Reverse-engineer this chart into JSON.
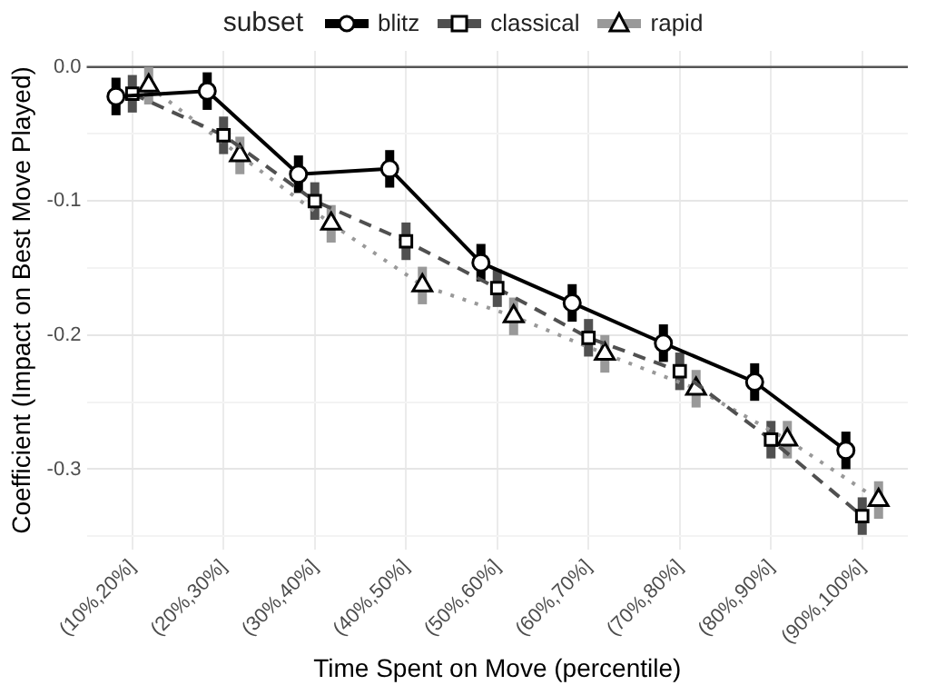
{
  "chart_data": {
    "type": "line",
    "xlabel": "Time Spent on Move (percentile)",
    "ylabel": "Coefficient (Impact on Best Move Played)",
    "legend_title": "subset",
    "legend": "top",
    "categories": [
      "(10%,20%]",
      "(20%,30%]",
      "(30%,40%]",
      "(40%,50%]",
      "(50%,60%]",
      "(60%,70%]",
      "(70%,80%]",
      "(80%,90%]",
      "(90%,100%]"
    ],
    "series": [
      {
        "name": "blitz",
        "color": "#000000",
        "marker": "circle",
        "line_style": "solid",
        "values": [
          -0.022,
          -0.018,
          -0.08,
          -0.076,
          -0.146,
          -0.176,
          -0.206,
          -0.235,
          -0.286
        ],
        "errors": [
          0.014,
          0.014,
          0.014,
          0.014,
          0.014,
          0.014,
          0.014,
          0.014,
          0.014
        ]
      },
      {
        "name": "classical",
        "color": "#505050",
        "marker": "square",
        "line_style": "dashed",
        "values": [
          -0.02,
          -0.051,
          -0.1,
          -0.13,
          -0.165,
          -0.202,
          -0.227,
          -0.278,
          -0.335
        ],
        "errors": [
          0.014,
          0.014,
          0.014,
          0.014,
          0.014,
          0.014,
          0.014,
          0.014,
          0.014
        ]
      },
      {
        "name": "rapid",
        "color": "#999999",
        "marker": "triangle",
        "line_style": "dotted",
        "values": [
          -0.014,
          -0.066,
          -0.117,
          -0.163,
          -0.186,
          -0.214,
          -0.24,
          -0.278,
          -0.323
        ],
        "errors": [
          0.014,
          0.014,
          0.014,
          0.014,
          0.014,
          0.014,
          0.014,
          0.014,
          0.014
        ]
      }
    ],
    "ylim": [
      -0.36,
      0.012
    ],
    "yticks": [
      {
        "value": 0,
        "label": "0.0"
      },
      -0.1,
      -0.2,
      -0.3,
      {
        "value": -0.05,
        "label": null
      },
      {
        "value": -0.15,
        "label": null
      },
      {
        "value": -0.25,
        "label": null
      },
      {
        "value": -0.35,
        "label": null
      }
    ],
    "grid": true,
    "ref_lines": [
      {
        "axis": "y",
        "value": 0,
        "color": "#555555"
      }
    ]
  }
}
